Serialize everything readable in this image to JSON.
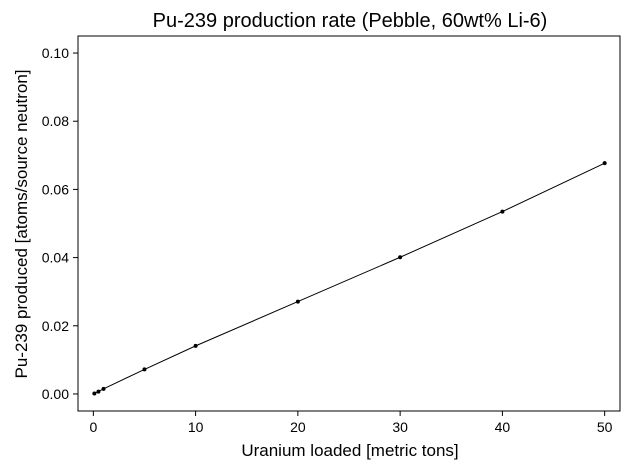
{
  "chart_data": {
    "type": "line",
    "title": "Pu-239 production rate (Pebble, 60wt% Li-6)",
    "xlabel": "Uranium loaded [metric tons]",
    "ylabel": "Pu-239 produced [atoms/source neutron]",
    "xlim": [
      -1.5,
      51.5
    ],
    "ylim": [
      -0.005,
      0.105
    ],
    "grid": false,
    "legend": "none",
    "x_ticks": [
      0,
      10,
      20,
      30,
      40,
      50
    ],
    "x_tick_labels": [
      "0",
      "10",
      "20",
      "30",
      "40",
      "50"
    ],
    "y_ticks": [
      0.0,
      0.02,
      0.04,
      0.06,
      0.08,
      0.1
    ],
    "y_tick_labels": [
      "0.00",
      "0.02",
      "0.04",
      "0.06",
      "0.08",
      "0.10"
    ],
    "series": [
      {
        "color": "#000000",
        "marker": "dot",
        "x": [
          0.1,
          0.5,
          1,
          5,
          10,
          20,
          30,
          40,
          50
        ],
        "y": [
          0.00014,
          0.0007,
          0.0015,
          0.0072,
          0.0141,
          0.0271,
          0.0401,
          0.0535,
          0.0677
        ]
      }
    ]
  }
}
